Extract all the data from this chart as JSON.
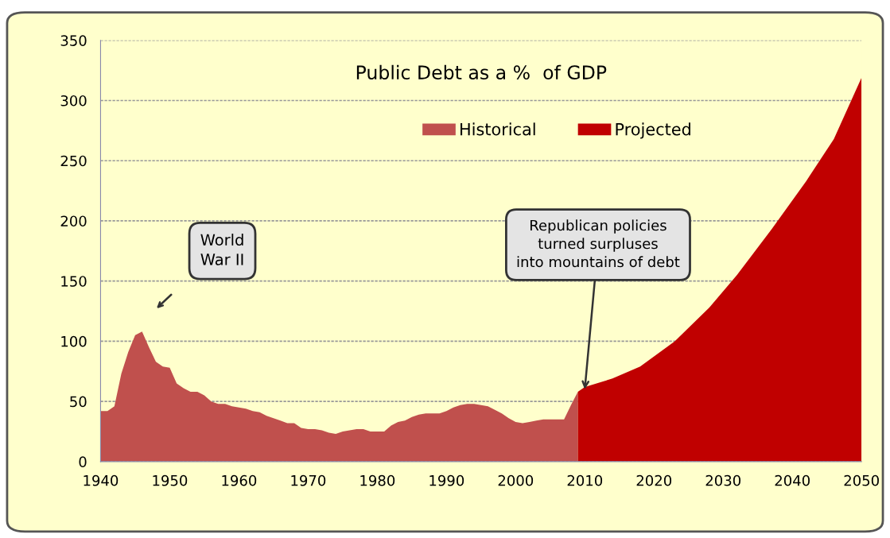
{
  "chart_data": {
    "type": "area",
    "title": "Public Debt as a %  of GDP",
    "series": [
      {
        "name": "Historical",
        "color": "#c0504d",
        "x": [
          1940,
          1941,
          1942,
          1943,
          1944,
          1945,
          1946,
          1947,
          1948,
          1949,
          1950,
          1951,
          1952,
          1953,
          1954,
          1955,
          1956,
          1957,
          1958,
          1959,
          1960,
          1961,
          1962,
          1963,
          1964,
          1965,
          1966,
          1967,
          1968,
          1969,
          1970,
          1971,
          1972,
          1973,
          1974,
          1975,
          1976,
          1977,
          1978,
          1979,
          1980,
          1981,
          1982,
          1983,
          1984,
          1985,
          1986,
          1987,
          1988,
          1989,
          1990,
          1991,
          1992,
          1993,
          1994,
          1995,
          1996,
          1997,
          1998,
          1999,
          2000,
          2001,
          2002,
          2003,
          2004,
          2005,
          2006,
          2007,
          2008,
          2009
        ],
        "values": [
          42,
          42,
          46,
          73,
          91,
          105,
          108,
          95,
          83,
          79,
          78,
          65,
          61,
          58,
          58,
          55,
          50,
          48,
          48,
          46,
          45,
          44,
          42,
          41,
          38,
          36,
          34,
          32,
          32,
          28,
          27,
          27,
          26,
          24,
          23,
          25,
          26,
          27,
          27,
          25,
          25,
          25,
          30,
          33,
          34,
          37,
          39,
          40,
          40,
          40,
          42,
          45,
          47,
          48,
          48,
          47,
          46,
          43,
          40,
          36,
          33,
          32,
          33,
          34,
          35,
          35,
          35,
          35,
          47,
          58
        ]
      },
      {
        "name": "Projected",
        "color": "#c00000",
        "x": [
          2009,
          2010,
          2014,
          2018,
          2023,
          2028,
          2032,
          2037,
          2042,
          2046,
          2050
        ],
        "values": [
          58,
          62,
          69,
          79,
          100,
          128,
          155,
          193,
          233,
          268,
          319
        ]
      }
    ],
    "xlim": [
      1940,
      2050
    ],
    "xticks": [
      1940,
      1950,
      1960,
      1970,
      1980,
      1990,
      2000,
      2010,
      2020,
      2030,
      2040,
      2050
    ],
    "ylim": [
      0,
      350
    ],
    "yticks": [
      0,
      50,
      100,
      150,
      200,
      250,
      300,
      350
    ],
    "grid": "y",
    "legend": "top",
    "annotations": [
      "World\nWar II",
      {
        "text": "Republican policies\nturned surpluses\ninto mountains of debt",
        "x": 2010,
        "y": 60
      }
    ]
  }
}
